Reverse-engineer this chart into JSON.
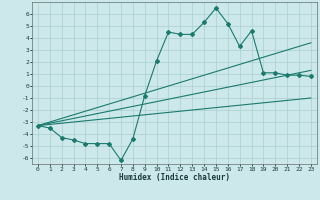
{
  "xlabel": "Humidex (Indice chaleur)",
  "x": [
    0,
    1,
    2,
    3,
    4,
    5,
    6,
    7,
    8,
    9,
    10,
    11,
    12,
    13,
    14,
    15,
    16,
    17,
    18,
    19,
    20,
    21,
    22,
    23
  ],
  "line_main": [
    -3.3,
    -3.5,
    -4.3,
    -4.5,
    -4.8,
    -4.8,
    -4.8,
    -6.2,
    -4.4,
    -0.8,
    2.1,
    4.5,
    4.3,
    4.3,
    5.3,
    6.5,
    5.2,
    3.3,
    4.6,
    1.1,
    1.1,
    0.9,
    0.9,
    0.8
  ],
  "line_reg1": [
    -3.3,
    -3.0,
    -2.7,
    -2.4,
    -2.1,
    -1.8,
    -1.5,
    -1.2,
    -0.9,
    -0.6,
    -0.3,
    0.0,
    0.3,
    0.6,
    0.9,
    1.2,
    1.5,
    1.8,
    2.1,
    2.4,
    2.7,
    3.0,
    3.3,
    3.6
  ],
  "line_reg2": [
    -3.3,
    -3.1,
    -2.9,
    -2.7,
    -2.5,
    -2.3,
    -2.1,
    -1.9,
    -1.7,
    -1.5,
    -1.3,
    -1.1,
    -0.9,
    -0.7,
    -0.5,
    -0.3,
    -0.1,
    0.1,
    0.3,
    0.5,
    0.7,
    0.9,
    1.1,
    1.3
  ],
  "line_reg3": [
    -3.3,
    -3.2,
    -3.1,
    -3.0,
    -2.9,
    -2.8,
    -2.7,
    -2.6,
    -2.5,
    -2.4,
    -2.3,
    -2.2,
    -2.1,
    -2.0,
    -1.9,
    -1.8,
    -1.7,
    -1.6,
    -1.5,
    -1.4,
    -1.3,
    -1.2,
    -1.1,
    -1.0
  ],
  "ylim": [
    -6.5,
    7.0
  ],
  "xlim": [
    -0.5,
    23.5
  ],
  "yticks": [
    -6,
    -5,
    -4,
    -3,
    -2,
    -1,
    0,
    1,
    2,
    3,
    4,
    5,
    6
  ],
  "xticks": [
    0,
    1,
    2,
    3,
    4,
    5,
    6,
    7,
    8,
    9,
    10,
    11,
    12,
    13,
    14,
    15,
    16,
    17,
    18,
    19,
    20,
    21,
    22,
    23
  ],
  "line_color": "#1a7a6e",
  "bg_color": "#cce8ea",
  "grid_color": "#aacfcf",
  "tick_color": "#1a3a3a",
  "xlabel_fontsize": 5.5,
  "tick_fontsize": 4.5
}
